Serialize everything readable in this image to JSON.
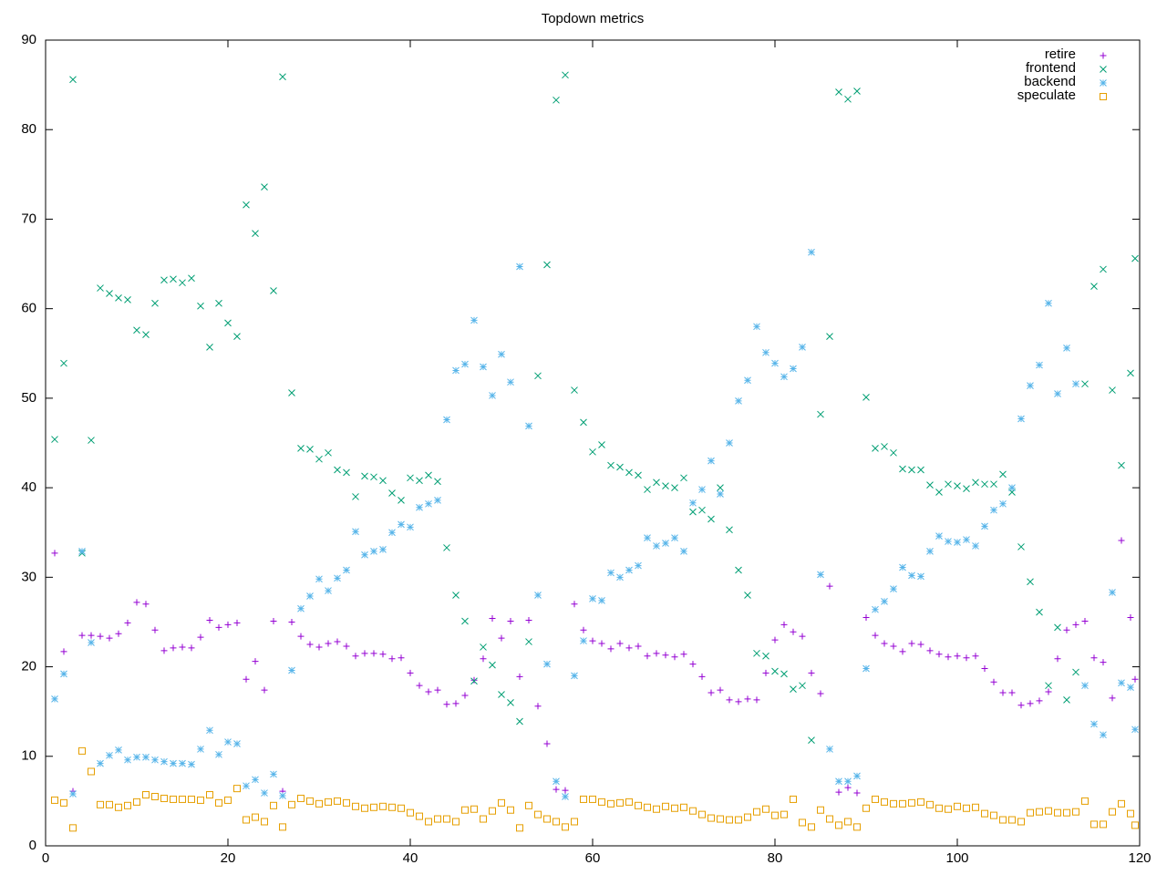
{
  "chart_data": {
    "type": "scatter",
    "title": "Topdown metrics",
    "x": [
      1,
      2,
      3,
      4,
      5,
      6,
      7,
      8,
      9,
      10,
      11,
      12,
      13,
      14,
      15,
      16,
      17,
      18,
      19,
      20,
      21,
      22,
      23,
      24,
      25,
      26,
      27,
      28,
      29,
      30,
      31,
      32,
      33,
      34,
      35,
      36,
      37,
      38,
      39,
      40,
      41,
      42,
      43,
      44,
      45,
      46,
      47,
      48,
      49,
      50,
      51,
      52,
      53,
      54,
      55,
      56,
      57,
      58,
      59,
      60,
      61,
      62,
      63,
      64,
      65,
      66,
      67,
      68,
      69,
      70,
      71,
      72,
      73,
      74,
      75,
      76,
      77,
      78,
      79,
      80,
      81,
      82,
      83,
      84,
      85,
      86,
      87,
      88,
      89,
      90,
      91,
      92,
      93,
      94,
      95,
      96,
      97,
      98,
      99,
      100,
      101,
      102,
      103,
      104,
      105,
      106,
      107,
      108,
      109,
      110,
      111,
      112,
      113,
      114,
      115,
      116,
      117,
      118,
      119,
      119.5
    ],
    "series": [
      {
        "name": "retire",
        "color": "#9400d3",
        "marker": "plus",
        "values": [
          32.7,
          21.7,
          6.1,
          23.5,
          23.5,
          23.4,
          23.2,
          23.7,
          24.9,
          27.2,
          27.0,
          24.1,
          21.8,
          22.1,
          22.2,
          22.1,
          23.3,
          25.2,
          24.4,
          24.7,
          24.9,
          18.6,
          20.6,
          17.4,
          25.1,
          6.1,
          25.0,
          23.4,
          22.5,
          22.2,
          22.6,
          22.8,
          22.3,
          21.2,
          21.5,
          21.5,
          21.4,
          20.9,
          21.0,
          19.3,
          17.9,
          17.2,
          17.4,
          15.8,
          15.9,
          16.8,
          18.5,
          20.9,
          25.4,
          23.2,
          25.1,
          18.9,
          25.2,
          15.6,
          11.4,
          6.3,
          6.2,
          27.0,
          24.1,
          22.9,
          22.6,
          22.0,
          22.6,
          22.1,
          22.3,
          21.2,
          21.5,
          21.3,
          21.1,
          21.4,
          20.3,
          18.9,
          17.1,
          17.4,
          16.3,
          16.1,
          16.4,
          16.3,
          19.3,
          23.0,
          24.7,
          23.9,
          23.4,
          19.3,
          17.0,
          29.0,
          6.0,
          6.5,
          5.9,
          25.5,
          23.5,
          22.6,
          22.3,
          21.7,
          22.6,
          22.5,
          21.8,
          21.4,
          21.1,
          21.2,
          21.0,
          21.2,
          19.8,
          18.3,
          17.1,
          17.1,
          15.7,
          15.9,
          16.2,
          17.2,
          20.9,
          24.1,
          24.7,
          25.1,
          21.0,
          20.5,
          16.5,
          34.1,
          25.5,
          18.6
        ]
      },
      {
        "name": "frontend",
        "color": "#009e73",
        "marker": "cross",
        "values": [
          45.4,
          53.9,
          85.6,
          32.7,
          45.3,
          62.3,
          61.7,
          61.2,
          61.0,
          57.6,
          57.1,
          60.6,
          63.2,
          63.3,
          62.9,
          63.4,
          60.3,
          55.7,
          60.6,
          58.4,
          56.9,
          71.6,
          68.4,
          73.6,
          62.0,
          85.9,
          50.6,
          44.4,
          44.3,
          43.2,
          43.9,
          42.0,
          41.7,
          39.0,
          41.3,
          41.2,
          40.8,
          39.4,
          38.6,
          41.1,
          40.8,
          41.4,
          40.7,
          33.3,
          28.0,
          25.1,
          18.4,
          22.2,
          20.2,
          16.9,
          16.0,
          13.9,
          22.8,
          52.5,
          64.9,
          83.3,
          86.1,
          50.9,
          47.3,
          44.0,
          44.8,
          42.5,
          42.3,
          41.7,
          41.4,
          39.8,
          40.6,
          40.2,
          40.0,
          41.1,
          37.3,
          37.5,
          36.5,
          40.0,
          35.3,
          30.8,
          28.0,
          21.5,
          21.2,
          19.5,
          19.2,
          17.5,
          17.9,
          11.8,
          48.2,
          56.9,
          84.2,
          83.4,
          84.3,
          50.1,
          44.4,
          44.6,
          43.9,
          42.1,
          42.0,
          42.0,
          40.3,
          39.5,
          40.4,
          40.2,
          39.9,
          40.6,
          40.4,
          40.4,
          41.5,
          39.5,
          33.4,
          29.5,
          26.1,
          17.9,
          24.4,
          16.3,
          19.4,
          51.6,
          62.5,
          64.4,
          50.9,
          42.5,
          52.8,
          65.6
        ]
      },
      {
        "name": "backend",
        "color": "#56b4e9",
        "marker": "star",
        "values": [
          16.4,
          19.2,
          5.8,
          32.9,
          22.7,
          9.2,
          10.1,
          10.7,
          9.6,
          9.9,
          9.9,
          9.6,
          9.4,
          9.2,
          9.2,
          9.1,
          10.8,
          12.9,
          10.2,
          11.6,
          11.4,
          6.7,
          7.4,
          5.9,
          8.0,
          5.6,
          19.6,
          26.5,
          27.9,
          29.8,
          28.5,
          29.9,
          30.8,
          35.1,
          32.5,
          32.9,
          33.1,
          35.0,
          35.9,
          35.6,
          37.8,
          38.2,
          38.6,
          47.6,
          53.1,
          53.8,
          58.7,
          53.5,
          50.3,
          54.9,
          51.8,
          64.7,
          46.9,
          28.0,
          20.3,
          7.2,
          5.5,
          19.0,
          22.9,
          27.6,
          27.4,
          30.5,
          30.0,
          30.8,
          31.3,
          34.4,
          33.5,
          33.8,
          34.4,
          32.9,
          38.3,
          39.8,
          43.0,
          39.3,
          45.0,
          49.7,
          52.0,
          58.0,
          55.1,
          53.9,
          52.4,
          53.3,
          55.7,
          66.3,
          30.3,
          10.8,
          7.2,
          7.2,
          7.8,
          19.8,
          26.4,
          27.3,
          28.7,
          31.1,
          30.2,
          30.1,
          32.9,
          34.6,
          34.0,
          33.9,
          34.2,
          33.5,
          35.7,
          37.5,
          38.2,
          40.0,
          47.7,
          51.4,
          53.7,
          60.6,
          50.5,
          55.6,
          51.6,
          17.9,
          13.6,
          12.4,
          28.3,
          18.2,
          17.7,
          13.0
        ]
      },
      {
        "name": "speculate",
        "color": "#e69f00",
        "marker": "square",
        "values": [
          5.1,
          4.8,
          2.0,
          10.6,
          8.3,
          4.6,
          4.6,
          4.3,
          4.5,
          4.9,
          5.7,
          5.5,
          5.3,
          5.2,
          5.2,
          5.2,
          5.1,
          5.7,
          4.8,
          5.1,
          6.4,
          2.9,
          3.2,
          2.7,
          4.5,
          2.1,
          4.6,
          5.3,
          5.0,
          4.7,
          4.9,
          5.0,
          4.8,
          4.4,
          4.2,
          4.3,
          4.4,
          4.3,
          4.2,
          3.7,
          3.3,
          2.7,
          3.0,
          3.0,
          2.7,
          4.0,
          4.1,
          3.0,
          3.9,
          4.8,
          4.0,
          2.0,
          4.5,
          3.5,
          3.0,
          2.7,
          2.1,
          2.7,
          5.2,
          5.2,
          4.9,
          4.7,
          4.8,
          4.9,
          4.5,
          4.3,
          4.1,
          4.4,
          4.2,
          4.3,
          3.9,
          3.5,
          3.1,
          3.0,
          2.9,
          2.9,
          3.2,
          3.8,
          4.1,
          3.4,
          3.5,
          5.2,
          2.6,
          2.1,
          4.0,
          3.0,
          2.3,
          2.7,
          2.1,
          4.2,
          5.2,
          4.9,
          4.7,
          4.7,
          4.8,
          4.9,
          4.6,
          4.2,
          4.1,
          4.4,
          4.2,
          4.3,
          3.6,
          3.4,
          2.9,
          2.9,
          2.7,
          3.7,
          3.8,
          3.9,
          3.7,
          3.7,
          3.8,
          5.0,
          2.4,
          2.4,
          3.8,
          4.7,
          3.6,
          2.3
        ]
      }
    ],
    "xlim": [
      0,
      120
    ],
    "xticks": [
      0,
      20,
      40,
      60,
      80,
      100,
      120
    ],
    "ylim": [
      0,
      90
    ],
    "yticks": [
      0,
      10,
      20,
      30,
      40,
      50,
      60,
      70,
      80,
      90
    ],
    "grid": false,
    "legend_position": "top-right"
  }
}
